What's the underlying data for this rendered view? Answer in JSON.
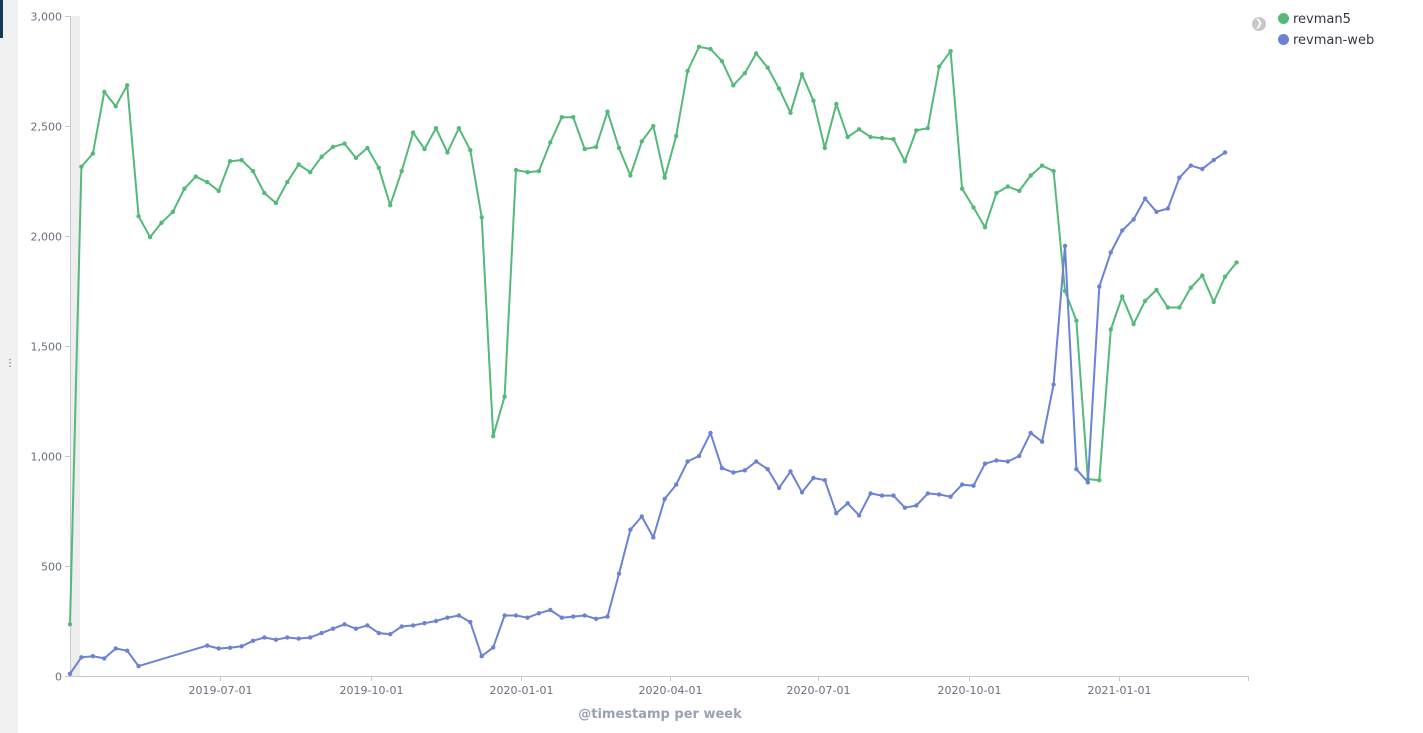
{
  "chart_data": {
    "type": "line",
    "xlabel": "@timestamp per week",
    "ylabel": "",
    "ylim": [
      0,
      3000
    ],
    "yticks": [
      0,
      500,
      1000,
      1500,
      2000,
      2500,
      3000
    ],
    "ytick_labels": [
      "0",
      "500",
      "1,000",
      "1,500",
      "2,000",
      "2,500",
      "3,000"
    ],
    "xrange": [
      "2019-04-01",
      "2021-03-01"
    ],
    "xticks": [
      "2019-07-01",
      "2019-10-01",
      "2020-01-01",
      "2020-04-01",
      "2020-07-01",
      "2020-10-01",
      "2021-01-01"
    ],
    "legend_position": "top-right",
    "series": [
      {
        "name": "revman5",
        "color": "#54b97a",
        "points": [
          [
            "2019-03-31",
            235
          ],
          [
            "2019-04-07",
            2315
          ],
          [
            "2019-04-14",
            2375
          ],
          [
            "2019-04-21",
            2655
          ],
          [
            "2019-04-28",
            2590
          ],
          [
            "2019-05-05",
            2685
          ],
          [
            "2019-05-12",
            2090
          ],
          [
            "2019-05-19",
            1995
          ],
          [
            "2019-05-26",
            2060
          ],
          [
            "2019-06-02",
            2110
          ],
          [
            "2019-06-09",
            2215
          ],
          [
            "2019-06-16",
            2270
          ],
          [
            "2019-06-23",
            2245
          ],
          [
            "2019-06-30",
            2205
          ],
          [
            "2019-07-07",
            2340
          ],
          [
            "2019-07-14",
            2345
          ],
          [
            "2019-07-21",
            2295
          ],
          [
            "2019-07-28",
            2195
          ],
          [
            "2019-08-04",
            2150
          ],
          [
            "2019-08-11",
            2245
          ],
          [
            "2019-08-18",
            2325
          ],
          [
            "2019-08-25",
            2290
          ],
          [
            "2019-09-01",
            2360
          ],
          [
            "2019-09-08",
            2405
          ],
          [
            "2019-09-15",
            2420
          ],
          [
            "2019-09-22",
            2355
          ],
          [
            "2019-09-29",
            2400
          ],
          [
            "2019-10-06",
            2310
          ],
          [
            "2019-10-13",
            2140
          ],
          [
            "2019-10-20",
            2295
          ],
          [
            "2019-10-27",
            2470
          ],
          [
            "2019-11-03",
            2395
          ],
          [
            "2019-11-10",
            2490
          ],
          [
            "2019-11-17",
            2380
          ],
          [
            "2019-11-24",
            2490
          ],
          [
            "2019-12-01",
            2390
          ],
          [
            "2019-12-08",
            2085
          ],
          [
            "2019-12-15",
            1090
          ],
          [
            "2019-12-22",
            1270
          ],
          [
            "2019-12-29",
            2300
          ],
          [
            "2020-01-05",
            2290
          ],
          [
            "2020-01-12",
            2295
          ],
          [
            "2020-01-19",
            2425
          ],
          [
            "2020-01-26",
            2540
          ],
          [
            "2020-02-02",
            2540
          ],
          [
            "2020-02-09",
            2395
          ],
          [
            "2020-02-16",
            2405
          ],
          [
            "2020-02-23",
            2565
          ],
          [
            "2020-03-01",
            2400
          ],
          [
            "2020-03-08",
            2275
          ],
          [
            "2020-03-15",
            2430
          ],
          [
            "2020-03-22",
            2500
          ],
          [
            "2020-03-29",
            2265
          ],
          [
            "2020-04-05",
            2455
          ],
          [
            "2020-04-12",
            2750
          ],
          [
            "2020-04-19",
            2860
          ],
          [
            "2020-04-26",
            2850
          ],
          [
            "2020-05-03",
            2795
          ],
          [
            "2020-05-10",
            2685
          ],
          [
            "2020-05-17",
            2740
          ],
          [
            "2020-05-24",
            2830
          ],
          [
            "2020-05-31",
            2765
          ],
          [
            "2020-06-07",
            2670
          ],
          [
            "2020-06-14",
            2560
          ],
          [
            "2020-06-21",
            2735
          ],
          [
            "2020-06-28",
            2615
          ],
          [
            "2020-07-05",
            2400
          ],
          [
            "2020-07-12",
            2600
          ],
          [
            "2020-07-19",
            2450
          ],
          [
            "2020-07-26",
            2485
          ],
          [
            "2020-08-02",
            2450
          ],
          [
            "2020-08-09",
            2445
          ],
          [
            "2020-08-16",
            2440
          ],
          [
            "2020-08-23",
            2340
          ],
          [
            "2020-08-30",
            2480
          ],
          [
            "2020-09-06",
            2490
          ],
          [
            "2020-09-13",
            2770
          ],
          [
            "2020-09-20",
            2840
          ],
          [
            "2020-09-27",
            2215
          ],
          [
            "2020-10-04",
            2130
          ],
          [
            "2020-10-11",
            2040
          ],
          [
            "2020-10-18",
            2195
          ],
          [
            "2020-10-25",
            2225
          ],
          [
            "2020-11-01",
            2205
          ],
          [
            "2020-11-08",
            2275
          ],
          [
            "2020-11-15",
            2320
          ],
          [
            "2020-11-22",
            2295
          ],
          [
            "2020-11-29",
            1750
          ],
          [
            "2020-12-06",
            1615
          ],
          [
            "2020-12-13",
            895
          ],
          [
            "2020-12-20",
            890
          ],
          [
            "2020-12-27",
            1575
          ],
          [
            "2021-01-03",
            1725
          ],
          [
            "2021-01-10",
            1600
          ],
          [
            "2021-01-17",
            1705
          ],
          [
            "2021-01-24",
            1755
          ],
          [
            "2021-01-31",
            1675
          ],
          [
            "2021-02-07",
            1675
          ],
          [
            "2021-02-14",
            1765
          ],
          [
            "2021-02-21",
            1820
          ],
          [
            "2021-02-28",
            1700
          ],
          [
            "2021-03-07",
            1815
          ],
          [
            "2021-03-14",
            1880
          ]
        ]
      },
      {
        "name": "revman-web",
        "color": "#6c83d4",
        "points": [
          [
            "2019-03-31",
            10
          ],
          [
            "2019-04-07",
            85
          ],
          [
            "2019-04-14",
            90
          ],
          [
            "2019-04-21",
            80
          ],
          [
            "2019-04-28",
            125
          ],
          [
            "2019-05-05",
            115
          ],
          [
            "2019-05-12",
            45
          ],
          [
            "2019-06-23",
            138
          ],
          [
            "2019-06-30",
            125
          ],
          [
            "2019-07-07",
            128
          ],
          [
            "2019-07-14",
            135
          ],
          [
            "2019-07-21",
            160
          ],
          [
            "2019-07-28",
            175
          ],
          [
            "2019-08-04",
            165
          ],
          [
            "2019-08-11",
            175
          ],
          [
            "2019-08-18",
            170
          ],
          [
            "2019-08-25",
            175
          ],
          [
            "2019-09-01",
            195
          ],
          [
            "2019-09-08",
            215
          ],
          [
            "2019-09-15",
            235
          ],
          [
            "2019-09-22",
            215
          ],
          [
            "2019-09-29",
            230
          ],
          [
            "2019-10-06",
            195
          ],
          [
            "2019-10-13",
            190
          ],
          [
            "2019-10-20",
            225
          ],
          [
            "2019-10-27",
            230
          ],
          [
            "2019-11-03",
            240
          ],
          [
            "2019-11-10",
            250
          ],
          [
            "2019-11-17",
            265
          ],
          [
            "2019-11-24",
            275
          ],
          [
            "2019-12-01",
            245
          ],
          [
            "2019-12-08",
            90
          ],
          [
            "2019-12-15",
            130
          ],
          [
            "2019-12-22",
            275
          ],
          [
            "2019-12-29",
            275
          ],
          [
            "2020-01-05",
            265
          ],
          [
            "2020-01-12",
            285
          ],
          [
            "2020-01-19",
            300
          ],
          [
            "2020-01-26",
            265
          ],
          [
            "2020-02-02",
            270
          ],
          [
            "2020-02-09",
            275
          ],
          [
            "2020-02-16",
            260
          ],
          [
            "2020-02-23",
            270
          ],
          [
            "2020-03-01",
            465
          ],
          [
            "2020-03-08",
            665
          ],
          [
            "2020-03-15",
            725
          ],
          [
            "2020-03-22",
            630
          ],
          [
            "2020-03-29",
            805
          ],
          [
            "2020-04-05",
            870
          ],
          [
            "2020-04-12",
            975
          ],
          [
            "2020-04-19",
            1000
          ],
          [
            "2020-04-26",
            1105
          ],
          [
            "2020-05-03",
            945
          ],
          [
            "2020-05-10",
            925
          ],
          [
            "2020-05-17",
            935
          ],
          [
            "2020-05-24",
            975
          ],
          [
            "2020-05-31",
            940
          ],
          [
            "2020-06-07",
            855
          ],
          [
            "2020-06-14",
            930
          ],
          [
            "2020-06-21",
            835
          ],
          [
            "2020-06-28",
            900
          ],
          [
            "2020-07-05",
            890
          ],
          [
            "2020-07-12",
            740
          ],
          [
            "2020-07-19",
            785
          ],
          [
            "2020-07-26",
            730
          ],
          [
            "2020-08-02",
            830
          ],
          [
            "2020-08-09",
            820
          ],
          [
            "2020-08-16",
            820
          ],
          [
            "2020-08-23",
            765
          ],
          [
            "2020-08-30",
            775
          ],
          [
            "2020-09-06",
            830
          ],
          [
            "2020-09-13",
            825
          ],
          [
            "2020-09-20",
            815
          ],
          [
            "2020-09-27",
            870
          ],
          [
            "2020-10-04",
            865
          ],
          [
            "2020-10-11",
            965
          ],
          [
            "2020-10-18",
            980
          ],
          [
            "2020-10-25",
            975
          ],
          [
            "2020-11-01",
            1000
          ],
          [
            "2020-11-08",
            1105
          ],
          [
            "2020-11-15",
            1065
          ],
          [
            "2020-11-22",
            1325
          ],
          [
            "2020-11-29",
            1955
          ],
          [
            "2020-12-06",
            940
          ],
          [
            "2020-12-13",
            880
          ],
          [
            "2020-12-20",
            1770
          ],
          [
            "2020-12-27",
            1925
          ],
          [
            "2021-01-03",
            2025
          ],
          [
            "2021-01-10",
            2075
          ],
          [
            "2021-01-17",
            2170
          ],
          [
            "2021-01-24",
            2110
          ],
          [
            "2021-01-31",
            2125
          ],
          [
            "2021-02-07",
            2265
          ],
          [
            "2021-02-14",
            2320
          ],
          [
            "2021-02-21",
            2305
          ],
          [
            "2021-02-28",
            2345
          ],
          [
            "2021-03-07",
            2380
          ]
        ]
      }
    ]
  },
  "legend": {
    "toggle_icon": "chevron-right-icon",
    "items": [
      {
        "label": "revman5",
        "color": "#54b97a"
      },
      {
        "label": "revman-web",
        "color": "#6c83d4"
      }
    ]
  }
}
